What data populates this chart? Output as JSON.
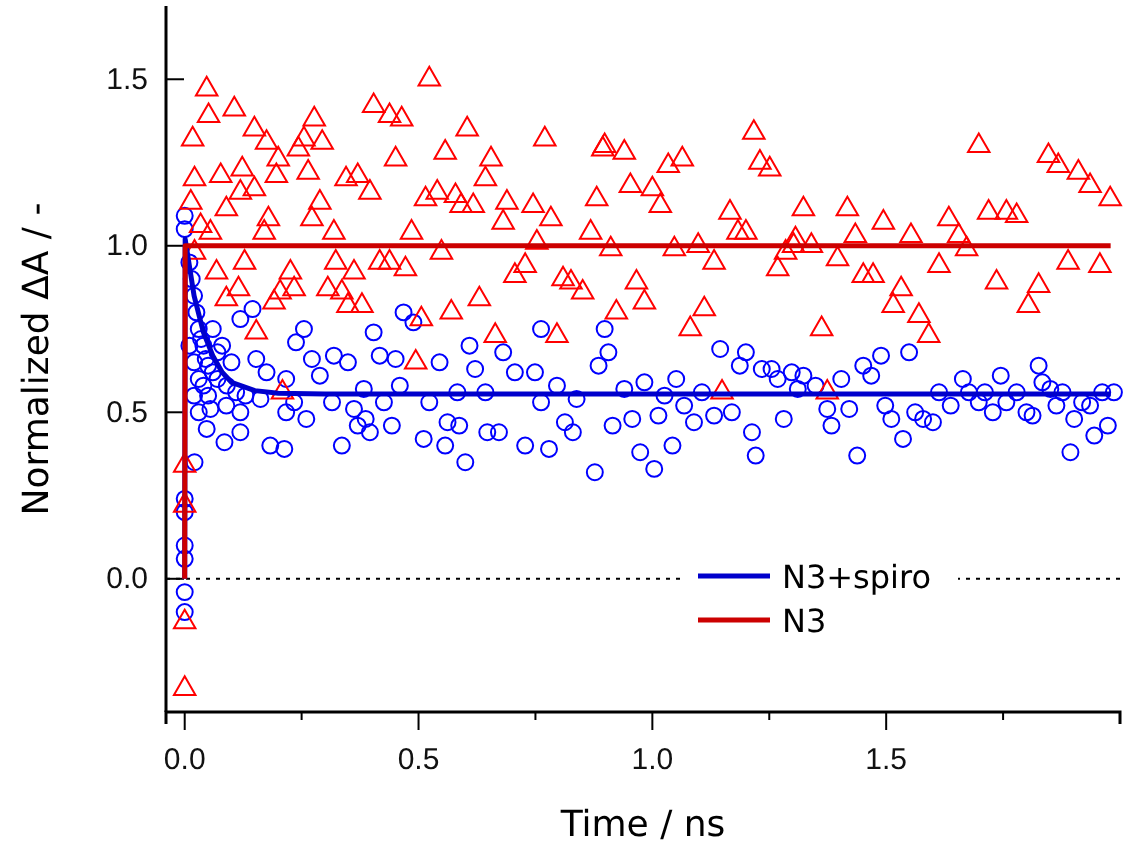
{
  "chart_data": {
    "type": "scatter",
    "xlabel": "Time / ns",
    "ylabel": "Normalized ΔA / -",
    "xlim": [
      -0.04,
      2.0
    ],
    "ylim": [
      -0.4,
      1.72
    ],
    "xticks": [
      {
        "value": 0,
        "label": "0.0"
      },
      {
        "value": 0.25,
        "label": null
      },
      {
        "value": 0.5,
        "label": "0.5"
      },
      {
        "value": 0.75,
        "label": null
      },
      {
        "value": 1,
        "label": "1.0"
      },
      {
        "value": 1.25,
        "label": null
      },
      {
        "value": 1.5,
        "label": "1.5"
      },
      {
        "value": 1.75,
        "label": null
      }
    ],
    "yticks": [
      {
        "value": 0,
        "label": "0.0"
      },
      {
        "value": 0.5,
        "label": "0.5"
      },
      {
        "value": 1,
        "label": "1.0"
      },
      {
        "value": 1.5,
        "label": "1.5"
      }
    ],
    "grid": false,
    "legend": "bottom right",
    "ref_lines": [
      {
        "axis": "y",
        "value": 0,
        "color": "#000000",
        "line_style": "dotted"
      }
    ],
    "series": [
      {
        "type": "scatter",
        "marker": "circle",
        "color": "#0000ff",
        "x": [
          0,
          0,
          0,
          0,
          0,
          0,
          0,
          0,
          0.01,
          0.015,
          0.02,
          0.025,
          0.03,
          0.035,
          0.04,
          0.045,
          0.05,
          0.06,
          0.07,
          0.01,
          0.02,
          0.03,
          0.04,
          0.05,
          0.02,
          0.03,
          0.06,
          0.08,
          0.07,
          0.1,
          0.09,
          0.11,
          0.13,
          0.145,
          0.119,
          0.255,
          0.404,
          0.468,
          0.489,
          0.609,
          0.681,
          0.762,
          0.898,
          0.906,
          0.885,
          0.153,
          0.238,
          0.272,
          0.319,
          0.349,
          0.417,
          0.451,
          0.545,
          0.621,
          0.706,
          0.749,
          0.175,
          0.217,
          0.289,
          0.383,
          0.46,
          0.523,
          0.583,
          0.643,
          0.796,
          0.838,
          0.94,
          0.162,
          0.234,
          0.315,
          0.362,
          0.426,
          0.762,
          0.089,
          0.055,
          0.217,
          0.387,
          0.26,
          0.119,
          0.443,
          0.562,
          0.587,
          0.672,
          0.647,
          0.813,
          0.83,
          0.915,
          0.957,
          0.396,
          0.37,
          0.511,
          0.557,
          0.728,
          0.779,
          0.183,
          0.213,
          0.336,
          0.6,
          0.877,
          0.047,
          0.085,
          0.119,
          0.021,
          0.983,
          1.026,
          1.051,
          1.043,
          0.974,
          1.004,
          1.013,
          1.068,
          1.089,
          1.106,
          1.145,
          1.187,
          1.2,
          1.17,
          1.132,
          1.213,
          1.221,
          1.234,
          1.255,
          1.268,
          1.281,
          1.298,
          1.311,
          1.323,
          1.349,
          1.374,
          1.383,
          1.404,
          1.421,
          1.438,
          1.451,
          1.468,
          1.489,
          1.498,
          1.511,
          1.536,
          1.549,
          1.562,
          1.579,
          1.6,
          1.613,
          1.638,
          1.664,
          1.677,
          1.698,
          1.711,
          1.728,
          1.745,
          1.757,
          1.779,
          1.8,
          1.813,
          1.826,
          1.834,
          1.851,
          1.864,
          1.877,
          1.894,
          1.902,
          1.919,
          1.936,
          1.945,
          1.962,
          1.974,
          1.987
        ],
        "values": [
          1.09,
          1.05,
          0.24,
          0.2,
          0.1,
          0.06,
          -0.04,
          -0.1,
          0.95,
          0.9,
          0.85,
          0.8,
          0.75,
          0.72,
          0.7,
          0.66,
          0.64,
          0.62,
          0.6,
          0.7,
          0.65,
          0.6,
          0.58,
          0.55,
          0.55,
          0.5,
          0.75,
          0.7,
          0.68,
          0.65,
          0.58,
          0.56,
          0.55,
          0.81,
          0.78,
          0.75,
          0.74,
          0.8,
          0.77,
          0.7,
          0.68,
          0.75,
          0.75,
          0.68,
          0.64,
          0.66,
          0.71,
          0.66,
          0.67,
          0.65,
          0.67,
          0.66,
          0.65,
          0.63,
          0.62,
          0.62,
          0.62,
          0.6,
          0.61,
          0.57,
          0.58,
          0.53,
          0.56,
          0.56,
          0.58,
          0.54,
          0.57,
          0.54,
          0.53,
          0.53,
          0.51,
          0.53,
          0.53,
          0.52,
          0.51,
          0.5,
          0.48,
          0.48,
          0.5,
          0.46,
          0.47,
          0.46,
          0.44,
          0.44,
          0.47,
          0.44,
          0.46,
          0.48,
          0.44,
          0.46,
          0.42,
          0.4,
          0.4,
          0.39,
          0.4,
          0.39,
          0.4,
          0.35,
          0.32,
          0.45,
          0.41,
          0.44,
          0.35,
          0.59,
          0.55,
          0.6,
          0.4,
          0.38,
          0.33,
          0.49,
          0.52,
          0.47,
          0.56,
          0.69,
          0.64,
          0.68,
          0.5,
          0.49,
          0.44,
          0.37,
          0.63,
          0.63,
          0.6,
          0.48,
          0.62,
          0.57,
          0.61,
          0.58,
          0.51,
          0.46,
          0.6,
          0.51,
          0.37,
          0.64,
          0.61,
          0.67,
          0.52,
          0.48,
          0.42,
          0.68,
          0.5,
          0.48,
          0.47,
          0.56,
          0.52,
          0.6,
          0.56,
          0.53,
          0.56,
          0.5,
          0.61,
          0.53,
          0.56,
          0.5,
          0.49,
          0.64,
          0.59,
          0.57,
          0.52,
          0.56,
          0.38,
          0.48,
          0.53,
          0.52,
          0.43,
          0.56,
          0.46,
          0.56
        ]
      },
      {
        "type": "scatter",
        "marker": "triangle",
        "color": "#ff0000",
        "x": [
          0,
          0,
          0,
          0,
          0.013,
          0.034,
          0.055,
          0.021,
          0.047,
          0.051,
          0.106,
          0.017,
          0.149,
          0.175,
          0.2,
          0.277,
          0.255,
          0.294,
          0.243,
          0.404,
          0.438,
          0.464,
          0.523,
          0.604,
          0.557,
          0.451,
          0.655,
          0.643,
          0.77,
          0.894,
          0.94,
          0.953,
          0.881,
          0.021,
          0.077,
          0.123,
          0.119,
          0.149,
          0.196,
          0.264,
          0.345,
          0.37,
          0.396,
          0.515,
          0.54,
          0.579,
          0.617,
          0.591,
          0.689,
          0.745,
          0.783,
          0.681,
          0.089,
          0.179,
          0.289,
          0.272,
          0.319,
          0.17,
          0.485,
          0.753,
          0.868,
          0.911,
          0.549,
          0.323,
          0.362,
          0.417,
          0.438,
          0.472,
          0.128,
          0.068,
          0.226,
          0.234,
          0.204,
          0.115,
          0.306,
          0.336,
          0.349,
          0.379,
          0.191,
          0.089,
          0.706,
          0.728,
          0.809,
          0.826,
          0.851,
          0.63,
          0.57,
          0.506,
          0.923,
          0.966,
          0.664,
          0.796,
          0.153,
          0.494,
          0.209,
          0.898,
          1.0,
          1.017,
          1.034,
          1.064,
          1.217,
          1.23,
          1.251,
          1.166,
          1.183,
          1.2,
          1.323,
          1.306,
          1.417,
          1.494,
          1.434,
          1.553,
          1.634,
          1.655,
          1.672,
          1.698,
          1.719,
          1.757,
          1.779,
          1.847,
          1.868,
          1.911,
          1.936,
          1.979,
          1.889,
          1.957,
          1.047,
          1.098,
          1.132,
          1.302,
          1.34,
          1.285,
          1.268,
          1.396,
          1.451,
          1.472,
          1.532,
          1.613,
          1.736,
          1.826,
          1.804,
          1.515,
          1.57,
          1.591,
          1.362,
          0.983,
          1.111,
          1.081,
          1.149,
          1.374
        ],
        "values": [
          0.34,
          0.22,
          -0.13,
          -0.33,
          1.13,
          1.06,
          1.04,
          0.98,
          1.47,
          1.39,
          1.41,
          1.32,
          1.35,
          1.31,
          1.26,
          1.38,
          1.32,
          1.31,
          1.29,
          1.42,
          1.39,
          1.38,
          1.5,
          1.35,
          1.28,
          1.26,
          1.26,
          1.2,
          1.32,
          1.29,
          1.28,
          1.18,
          1.14,
          1.2,
          1.21,
          1.23,
          1.16,
          1.17,
          1.21,
          1.22,
          1.2,
          1.21,
          1.16,
          1.14,
          1.16,
          1.15,
          1.12,
          1.12,
          1.13,
          1.12,
          1.08,
          1.07,
          1.11,
          1.08,
          1.13,
          1.08,
          1.04,
          1.04,
          1.04,
          1.01,
          1.04,
          0.99,
          0.98,
          0.95,
          0.92,
          0.95,
          0.95,
          0.93,
          0.95,
          0.92,
          0.92,
          0.87,
          0.86,
          0.87,
          0.87,
          0.86,
          0.82,
          0.82,
          0.83,
          0.84,
          0.91,
          0.94,
          0.9,
          0.89,
          0.86,
          0.84,
          0.8,
          0.78,
          0.8,
          0.89,
          0.73,
          0.73,
          0.74,
          0.65,
          0.56,
          1.3,
          1.17,
          1.12,
          1.24,
          1.26,
          1.34,
          1.25,
          1.23,
          1.1,
          1.04,
          1.04,
          1.11,
          1.02,
          1.11,
          1.07,
          1.03,
          1.03,
          1.08,
          1.03,
          0.99,
          1.3,
          1.1,
          1.1,
          1.09,
          1.27,
          1.24,
          1.22,
          1.18,
          1.14,
          0.95,
          0.94,
          0.99,
          1.0,
          0.95,
          1.0,
          1.0,
          0.98,
          0.93,
          0.96,
          0.91,
          0.91,
          0.87,
          0.94,
          0.89,
          0.88,
          0.82,
          0.82,
          0.79,
          0.73,
          0.75,
          0.83,
          0.81,
          0.75,
          0.56,
          0.56
        ]
      },
      {
        "type": "line",
        "name": "N3+spiro",
        "color": "#0000cc",
        "line_style": "solid",
        "marker": "none",
        "x": [
          0,
          0.001,
          0.02,
          0.04,
          0.06,
          0.08,
          0.1,
          0.15,
          0.2,
          0.3,
          1.98
        ],
        "values": [
          0,
          1.02,
          0.85,
          0.74,
          0.67,
          0.62,
          0.59,
          0.565,
          0.557,
          0.555,
          0.555
        ]
      },
      {
        "type": "line",
        "name": "N3",
        "color": "#cc0000",
        "line_style": "solid",
        "marker": "none",
        "x": [
          0,
          0.001,
          1.98
        ],
        "values": [
          0,
          1,
          1
        ]
      }
    ]
  }
}
